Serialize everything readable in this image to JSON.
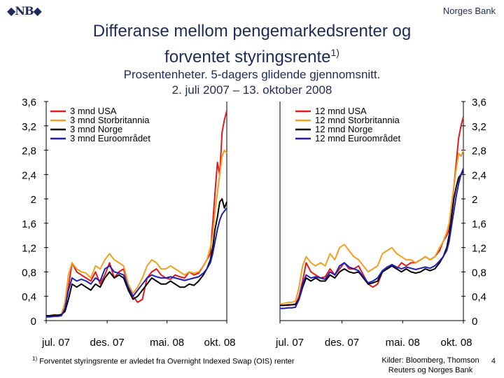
{
  "header": {
    "logo_text": "NB",
    "bank_name": "Norges Bank",
    "title_line1": "Differanse mellom pengemarkedsrenter og",
    "title_line2": "forventet styringsrente",
    "title_sup": "1)",
    "subtitle_line1": "Prosentenheter. 5-dagers glidende gjennomsnitt.",
    "subtitle_line2": "2. juli 2007 – 13. oktober 2008"
  },
  "footer": {
    "footnote_marker": "1)",
    "footnote": "Forventet styringsrente er avledet fra Overnight Indexed Swap (OIS) renter",
    "sources_line1": "Kilder: Bloomberg, Thomson",
    "sources_line2": "Reuters og Norges Bank",
    "page_number": "4"
  },
  "colors": {
    "USA": "#e31a1c",
    "Storbritannia": "#f0a020",
    "Norge": "#000000",
    "Euroområdet": "#1f1fb4"
  },
  "chart_data": [
    {
      "type": "line",
      "y_ticks": [
        "0",
        "0,4",
        "0,8",
        "1,2",
        "1,6",
        "2",
        "2,4",
        "2,8",
        "3,2",
        "3,6"
      ],
      "ylim": [
        0,
        3.6
      ],
      "x_ticks": [
        "jul. 07",
        "des. 07",
        "mai. 08",
        "okt. 08"
      ],
      "xlim": [
        0,
        15.4
      ],
      "legend_position": "top-left",
      "series": [
        {
          "name": "3 mnd USA",
          "key": "USA",
          "x": [
            0,
            0.3,
            0.7,
            1.0,
            1.3,
            1.6,
            1.9,
            2.2,
            2.6,
            3.0,
            3.4,
            3.8,
            4.2,
            4.6,
            5.0,
            5.4,
            5.8,
            6.2,
            6.6,
            7.0,
            7.4,
            7.8,
            8.2,
            8.6,
            9.0,
            9.4,
            9.8,
            10.2,
            10.6,
            11.0,
            11.4,
            11.8,
            12.2,
            12.6,
            13.0,
            13.4,
            13.7,
            14.0,
            14.2,
            14.4,
            14.6,
            14.8,
            15.0,
            15.2,
            15.4
          ],
          "y": [
            0.08,
            0.08,
            0.09,
            0.08,
            0.09,
            0.2,
            0.55,
            0.95,
            0.8,
            0.75,
            0.7,
            0.65,
            0.8,
            0.6,
            0.75,
            0.95,
            0.7,
            0.8,
            0.85,
            0.55,
            0.4,
            0.3,
            0.35,
            0.7,
            0.8,
            0.85,
            0.75,
            0.7,
            0.68,
            0.75,
            0.72,
            0.7,
            0.8,
            0.75,
            0.78,
            0.9,
            1.0,
            1.1,
            1.6,
            2.1,
            2.6,
            2.4,
            3.1,
            3.3,
            3.45
          ]
        },
        {
          "name": "3 mnd Storbritannia",
          "key": "Storbritannia",
          "x": [
            0,
            0.3,
            0.7,
            1.0,
            1.3,
            1.6,
            1.9,
            2.2,
            2.6,
            3.0,
            3.4,
            3.8,
            4.2,
            4.6,
            5.0,
            5.4,
            5.8,
            6.2,
            6.6,
            7.0,
            7.4,
            7.8,
            8.2,
            8.6,
            9.0,
            9.4,
            9.8,
            10.2,
            10.6,
            11.0,
            11.4,
            11.8,
            12.2,
            12.6,
            13.0,
            13.4,
            13.7,
            14.0,
            14.2,
            14.4,
            14.6,
            14.8,
            15.0,
            15.2,
            15.4
          ],
          "y": [
            0.08,
            0.08,
            0.1,
            0.09,
            0.1,
            0.3,
            0.75,
            0.95,
            0.85,
            0.8,
            0.78,
            0.7,
            0.9,
            0.85,
            1.0,
            1.1,
            1.0,
            0.95,
            0.9,
            0.6,
            0.45,
            0.55,
            0.7,
            0.9,
            1.0,
            0.95,
            0.85,
            0.85,
            0.9,
            0.85,
            0.8,
            0.75,
            0.8,
            0.78,
            0.8,
            0.9,
            1.0,
            1.2,
            1.4,
            1.8,
            2.1,
            2.4,
            2.7,
            2.8,
            2.75
          ]
        },
        {
          "name": "3 mnd Norge",
          "key": "Norge",
          "x": [
            0,
            0.3,
            0.7,
            1.0,
            1.3,
            1.6,
            1.9,
            2.2,
            2.6,
            3.0,
            3.4,
            3.8,
            4.2,
            4.6,
            5.0,
            5.4,
            5.8,
            6.2,
            6.6,
            7.0,
            7.4,
            7.8,
            8.2,
            8.6,
            9.0,
            9.4,
            9.8,
            10.2,
            10.6,
            11.0,
            11.4,
            11.8,
            12.2,
            12.6,
            13.0,
            13.4,
            13.7,
            14.0,
            14.2,
            14.4,
            14.6,
            14.8,
            15.0,
            15.2,
            15.4
          ],
          "y": [
            0.08,
            0.08,
            0.09,
            0.09,
            0.1,
            0.15,
            0.35,
            0.6,
            0.55,
            0.6,
            0.55,
            0.5,
            0.6,
            0.55,
            0.7,
            0.8,
            0.7,
            0.75,
            0.7,
            0.5,
            0.35,
            0.4,
            0.5,
            0.6,
            0.7,
            0.65,
            0.6,
            0.6,
            0.65,
            0.6,
            0.55,
            0.55,
            0.6,
            0.58,
            0.65,
            0.75,
            0.85,
            1.0,
            1.2,
            1.5,
            1.7,
            1.95,
            2.0,
            1.85,
            1.95
          ]
        },
        {
          "name": "3 mnd Euroområdet",
          "key": "Euroområdet",
          "x": [
            0,
            0.3,
            0.7,
            1.0,
            1.3,
            1.6,
            1.9,
            2.2,
            2.6,
            3.0,
            3.4,
            3.8,
            4.2,
            4.6,
            5.0,
            5.4,
            5.8,
            6.2,
            6.6,
            7.0,
            7.4,
            7.8,
            8.2,
            8.6,
            9.0,
            9.4,
            9.8,
            10.2,
            10.6,
            11.0,
            11.4,
            11.8,
            12.2,
            12.6,
            13.0,
            13.4,
            13.7,
            14.0,
            14.2,
            14.4,
            14.6,
            14.8,
            15.0,
            15.2,
            15.4
          ],
          "y": [
            0.06,
            0.06,
            0.07,
            0.07,
            0.08,
            0.2,
            0.5,
            0.7,
            0.65,
            0.68,
            0.65,
            0.6,
            0.7,
            0.65,
            0.85,
            0.9,
            0.8,
            0.78,
            0.75,
            0.55,
            0.4,
            0.5,
            0.6,
            0.7,
            0.75,
            0.72,
            0.7,
            0.7,
            0.72,
            0.7,
            0.68,
            0.66,
            0.68,
            0.7,
            0.72,
            0.78,
            0.85,
            0.95,
            1.1,
            1.3,
            1.5,
            1.65,
            1.75,
            1.8,
            1.85
          ]
        }
      ]
    },
    {
      "type": "line",
      "y_ticks": [
        "0",
        "0,4",
        "0,8",
        "1,2",
        "1,6",
        "2",
        "2,4",
        "2,8",
        "3,2",
        "3,6"
      ],
      "ylim": [
        0,
        3.6
      ],
      "x_ticks": [
        "jul. 07",
        "des. 07",
        "mai. 08",
        "okt. 08"
      ],
      "xlim": [
        0,
        15.4
      ],
      "legend_position": "top-left",
      "series": [
        {
          "name": "12 mnd USA",
          "key": "USA",
          "x": [
            0,
            0.3,
            0.7,
            1.0,
            1.3,
            1.6,
            1.9,
            2.2,
            2.6,
            3.0,
            3.4,
            3.8,
            4.2,
            4.6,
            5.0,
            5.4,
            5.8,
            6.2,
            6.6,
            7.0,
            7.4,
            7.8,
            8.2,
            8.6,
            9.0,
            9.4,
            9.8,
            10.2,
            10.6,
            11.0,
            11.4,
            11.8,
            12.2,
            12.6,
            13.0,
            13.4,
            13.7,
            14.0,
            14.2,
            14.4,
            14.6,
            14.8,
            15.0,
            15.2,
            15.4
          ],
          "y": [
            0.25,
            0.25,
            0.25,
            0.26,
            0.26,
            0.4,
            0.65,
            0.95,
            0.8,
            0.75,
            0.7,
            0.72,
            0.85,
            0.75,
            0.85,
            0.95,
            0.85,
            0.85,
            0.9,
            0.75,
            0.6,
            0.55,
            0.6,
            0.8,
            0.85,
            0.9,
            0.85,
            0.95,
            0.9,
            0.95,
            0.95,
            1.0,
            1.05,
            1.0,
            1.05,
            1.15,
            1.3,
            1.4,
            1.5,
            1.8,
            2.2,
            2.6,
            3.0,
            3.2,
            3.35
          ]
        },
        {
          "name": "12 mnd Storbritannia",
          "key": "Storbritannia",
          "x": [
            0,
            0.3,
            0.7,
            1.0,
            1.3,
            1.6,
            1.9,
            2.2,
            2.6,
            3.0,
            3.4,
            3.8,
            4.2,
            4.6,
            5.0,
            5.4,
            5.8,
            6.2,
            6.6,
            7.0,
            7.4,
            7.8,
            8.2,
            8.6,
            9.0,
            9.4,
            9.8,
            10.2,
            10.6,
            11.0,
            11.4,
            11.8,
            12.2,
            12.6,
            13.0,
            13.4,
            13.7,
            14.0,
            14.2,
            14.4,
            14.6,
            14.8,
            15.0,
            15.2,
            15.4
          ],
          "y": [
            0.28,
            0.28,
            0.3,
            0.3,
            0.32,
            0.55,
            0.9,
            1.05,
            0.95,
            0.9,
            0.95,
            0.9,
            1.1,
            1.0,
            1.2,
            1.25,
            1.15,
            1.05,
            1.0,
            0.9,
            0.8,
            0.85,
            0.9,
            1.1,
            1.15,
            1.2,
            1.1,
            1.05,
            1.0,
            1.0,
            0.95,
            1.0,
            1.05,
            1.0,
            1.05,
            1.2,
            1.3,
            1.45,
            1.6,
            1.9,
            2.2,
            2.5,
            2.75,
            2.7,
            2.8
          ]
        },
        {
          "name": "12 mnd Norge",
          "key": "Norge",
          "x": [
            0,
            0.3,
            0.7,
            1.0,
            1.3,
            1.6,
            1.9,
            2.2,
            2.6,
            3.0,
            3.4,
            3.8,
            4.2,
            4.6,
            5.0,
            5.4,
            5.8,
            6.2,
            6.6,
            7.0,
            7.4,
            7.8,
            8.2,
            8.6,
            9.0,
            9.4,
            9.8,
            10.2,
            10.6,
            11.0,
            11.4,
            11.8,
            12.2,
            12.6,
            13.0,
            13.4,
            13.7,
            14.0,
            14.2,
            14.4,
            14.6,
            14.8,
            15.0,
            15.2,
            15.4
          ],
          "y": [
            0.25,
            0.25,
            0.26,
            0.26,
            0.27,
            0.35,
            0.55,
            0.7,
            0.65,
            0.7,
            0.65,
            0.65,
            0.75,
            0.7,
            0.8,
            0.85,
            0.8,
            0.78,
            0.8,
            0.7,
            0.6,
            0.62,
            0.65,
            0.8,
            0.85,
            0.9,
            0.85,
            0.8,
            0.85,
            0.8,
            0.78,
            0.8,
            0.85,
            0.82,
            0.85,
            0.95,
            1.05,
            1.2,
            1.4,
            1.7,
            2.0,
            2.2,
            2.35,
            2.4,
            2.45
          ]
        },
        {
          "name": "12 mnd Euroområdet",
          "key": "Euroområdet",
          "x": [
            0,
            0.3,
            0.7,
            1.0,
            1.3,
            1.6,
            1.9,
            2.2,
            2.6,
            3.0,
            3.4,
            3.8,
            4.2,
            4.6,
            5.0,
            5.4,
            5.8,
            6.2,
            6.6,
            7.0,
            7.4,
            7.8,
            8.2,
            8.6,
            9.0,
            9.4,
            9.8,
            10.2,
            10.6,
            11.0,
            11.4,
            11.8,
            12.2,
            12.6,
            13.0,
            13.4,
            13.7,
            14.0,
            14.2,
            14.4,
            14.6,
            14.8,
            15.0,
            15.2,
            15.4
          ],
          "y": [
            0.2,
            0.2,
            0.21,
            0.21,
            0.22,
            0.35,
            0.6,
            0.75,
            0.7,
            0.72,
            0.7,
            0.68,
            0.8,
            0.75,
            0.9,
            0.95,
            0.88,
            0.85,
            0.82,
            0.72,
            0.62,
            0.65,
            0.7,
            0.82,
            0.88,
            0.92,
            0.88,
            0.85,
            0.88,
            0.86,
            0.84,
            0.86,
            0.88,
            0.86,
            0.9,
            0.98,
            1.05,
            1.15,
            1.3,
            1.55,
            1.8,
            2.05,
            2.25,
            2.4,
            2.5
          ]
        }
      ]
    }
  ]
}
